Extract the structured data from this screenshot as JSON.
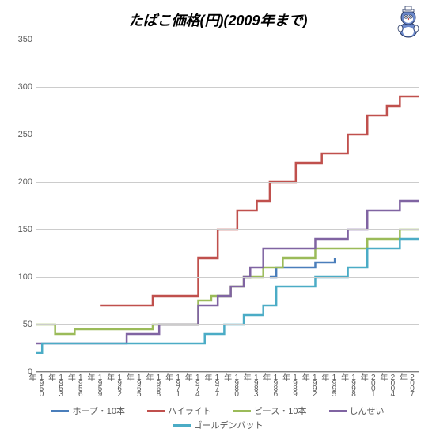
{
  "title": "たばこ価格(円)(2009年まで)",
  "title_fontsize": 18,
  "background_color": "#ffffff",
  "grid_color": "#cccccc",
  "axis_color": "#808080",
  "label_color": "#595959",
  "ylim": [
    0,
    350
  ],
  "ytick_step": 50,
  "yticks": [
    0,
    50,
    100,
    150,
    200,
    250,
    300,
    350
  ],
  "years": [
    1950,
    1951,
    1952,
    1953,
    1954,
    1955,
    1956,
    1957,
    1958,
    1959,
    1960,
    1961,
    1962,
    1963,
    1964,
    1965,
    1966,
    1967,
    1968,
    1969,
    1970,
    1971,
    1972,
    1973,
    1974,
    1975,
    1976,
    1977,
    1978,
    1979,
    1980,
    1981,
    1982,
    1983,
    1984,
    1985,
    1986,
    1987,
    1988,
    1989,
    1990,
    1991,
    1992,
    1993,
    1994,
    1995,
    1996,
    1997,
    1998,
    1999,
    2000,
    2001,
    2002,
    2003,
    2004,
    2005,
    2006,
    2007,
    2008,
    2009
  ],
  "xticks": [
    1950,
    1953,
    1956,
    1959,
    1962,
    1965,
    1968,
    1971,
    1974,
    1977,
    1980,
    1983,
    1986,
    1989,
    1992,
    1995,
    1998,
    2001,
    2004,
    2007
  ],
  "xtick_suffix": "年",
  "line_width": 2.5,
  "series": [
    {
      "key": "hope",
      "label": "ホープ・10本",
      "color": "#4a7ebb",
      "years": [
        1986,
        1987,
        1988,
        1989,
        1990,
        1991,
        1992,
        1993,
        1994,
        1995,
        1996
      ],
      "values": [
        100,
        110,
        110,
        110,
        110,
        110,
        110,
        115,
        115,
        115,
        120
      ]
    },
    {
      "key": "hilite",
      "label": "ハイライト",
      "color": "#c0504d",
      "years": [
        1960,
        1961,
        1962,
        1963,
        1964,
        1965,
        1966,
        1967,
        1968,
        1969,
        1970,
        1971,
        1972,
        1973,
        1974,
        1975,
        1976,
        1977,
        1978,
        1979,
        1980,
        1981,
        1982,
        1983,
        1984,
        1985,
        1986,
        1987,
        1988,
        1989,
        1990,
        1991,
        1992,
        1993,
        1994,
        1995,
        1996,
        1997,
        1998,
        1999,
        2000,
        2001,
        2002,
        2003,
        2004,
        2005,
        2006,
        2007,
        2008,
        2009
      ],
      "values": [
        70,
        70,
        70,
        70,
        70,
        70,
        70,
        70,
        80,
        80,
        80,
        80,
        80,
        80,
        80,
        120,
        120,
        120,
        150,
        150,
        150,
        170,
        170,
        170,
        180,
        180,
        200,
        200,
        200,
        200,
        220,
        220,
        220,
        220,
        230,
        230,
        230,
        230,
        250,
        250,
        250,
        270,
        270,
        270,
        280,
        280,
        290,
        290,
        290,
        290
      ]
    },
    {
      "key": "peace",
      "label": "ピース・10本",
      "color": "#9bbb59",
      "years": [
        1950,
        1951,
        1952,
        1953,
        1954,
        1955,
        1956,
        1957,
        1958,
        1959,
        1960,
        1961,
        1962,
        1963,
        1964,
        1965,
        1966,
        1967,
        1968,
        1969,
        1970,
        1971,
        1972,
        1973,
        1974,
        1975,
        1976,
        1977,
        1978,
        1979,
        1980,
        1981,
        1982,
        1983,
        1984,
        1985,
        1986,
        1987,
        1988,
        1989,
        1990,
        1991,
        1992,
        1993,
        1994,
        1995,
        1996,
        1997,
        1998,
        1999,
        2000,
        2001,
        2002,
        2003,
        2004,
        2005,
        2006,
        2007,
        2008,
        2009
      ],
      "values": [
        50,
        50,
        50,
        40,
        40,
        40,
        45,
        45,
        45,
        45,
        45,
        45,
        45,
        45,
        45,
        45,
        45,
        45,
        50,
        50,
        50,
        50,
        50,
        50,
        50,
        75,
        75,
        80,
        80,
        80,
        90,
        90,
        100,
        100,
        100,
        110,
        110,
        110,
        120,
        120,
        120,
        120,
        120,
        130,
        130,
        130,
        130,
        130,
        130,
        130,
        130,
        140,
        140,
        140,
        140,
        140,
        150,
        150,
        150,
        150
      ]
    },
    {
      "key": "shinsei",
      "label": "しんせい",
      "color": "#8064a2",
      "years": [
        1950,
        1951,
        1952,
        1953,
        1954,
        1955,
        1956,
        1957,
        1958,
        1959,
        1960,
        1961,
        1962,
        1963,
        1964,
        1965,
        1966,
        1967,
        1968,
        1969,
        1970,
        1971,
        1972,
        1973,
        1974,
        1975,
        1976,
        1977,
        1978,
        1979,
        1980,
        1981,
        1982,
        1983,
        1984,
        1985,
        1986,
        1987,
        1988,
        1989,
        1990,
        1991,
        1992,
        1993,
        1994,
        1995,
        1996,
        1997,
        1998,
        1999,
        2000,
        2001,
        2002,
        2003,
        2004,
        2005,
        2006,
        2007,
        2008,
        2009
      ],
      "values": [
        30,
        30,
        30,
        30,
        30,
        30,
        30,
        30,
        30,
        30,
        30,
        30,
        30,
        30,
        40,
        40,
        40,
        40,
        40,
        50,
        50,
        50,
        50,
        50,
        50,
        70,
        70,
        70,
        80,
        80,
        90,
        90,
        100,
        110,
        110,
        130,
        130,
        130,
        130,
        130,
        130,
        130,
        130,
        140,
        140,
        140,
        140,
        140,
        150,
        150,
        150,
        170,
        170,
        170,
        170,
        170,
        180,
        180,
        180,
        180
      ]
    },
    {
      "key": "golden",
      "label": "ゴールデンバット",
      "color": "#4bacc6",
      "years": [
        1950,
        1951,
        1952,
        1953,
        1954,
        1955,
        1956,
        1957,
        1958,
        1959,
        1960,
        1961,
        1962,
        1963,
        1964,
        1965,
        1966,
        1967,
        1968,
        1969,
        1970,
        1971,
        1972,
        1973,
        1974,
        1975,
        1976,
        1977,
        1978,
        1979,
        1980,
        1981,
        1982,
        1983,
        1984,
        1985,
        1986,
        1987,
        1988,
        1989,
        1990,
        1991,
        1992,
        1993,
        1994,
        1995,
        1996,
        1997,
        1998,
        1999,
        2000,
        2001,
        2002,
        2003,
        2004,
        2005,
        2006,
        2007,
        2008,
        2009
      ],
      "values": [
        20,
        30,
        30,
        30,
        30,
        30,
        30,
        30,
        30,
        30,
        30,
        30,
        30,
        30,
        30,
        30,
        30,
        30,
        30,
        30,
        30,
        30,
        30,
        30,
        30,
        30,
        40,
        40,
        40,
        50,
        50,
        50,
        60,
        60,
        60,
        70,
        70,
        90,
        90,
        90,
        90,
        90,
        90,
        100,
        100,
        100,
        100,
        100,
        110,
        110,
        110,
        130,
        130,
        130,
        130,
        130,
        140,
        140,
        140,
        140
      ]
    }
  ],
  "legend": {
    "position": "bottom"
  }
}
